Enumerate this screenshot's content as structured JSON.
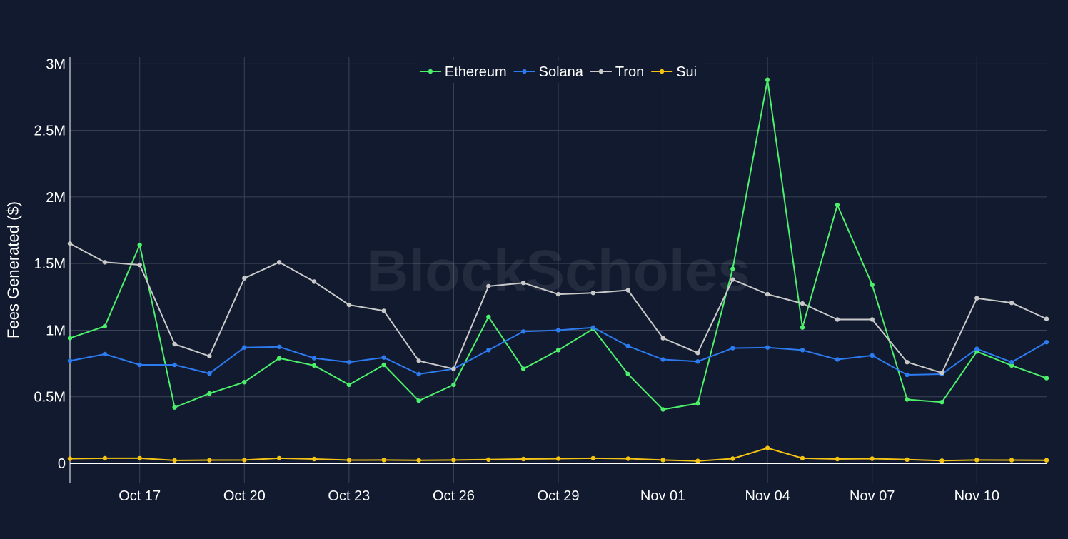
{
  "watermark": "BlockScholes",
  "colors": {
    "background": "#111a2e",
    "grid": "#3a4356",
    "axis": "#ffffff",
    "text": "#ffffff",
    "Ethereum": "#4cf06b",
    "Solana": "#2d7bf0",
    "Tron": "#c9c9c9",
    "Sui": "#f5c314"
  },
  "chart_data": {
    "type": "line",
    "title": "",
    "xlabel": "",
    "ylabel": "Fees Generated ($)",
    "grid": true,
    "legend_position": "top-center",
    "ylim": [
      -150000,
      3050000
    ],
    "xlim": [
      "2024-10-15",
      "2024-11-12"
    ],
    "yticks": [
      0,
      500000,
      1000000,
      1500000,
      2000000,
      2500000,
      3000000
    ],
    "ytick_labels": [
      "0",
      "0.5M",
      "1M",
      "1.5M",
      "2M",
      "2.5M",
      "3M"
    ],
    "xticks": [
      "2024-10-17",
      "2024-10-20",
      "2024-10-23",
      "2024-10-26",
      "2024-10-29",
      "2024-11-01",
      "2024-11-04",
      "2024-11-07",
      "2024-11-10"
    ],
    "xtick_labels": [
      "Oct 17",
      "Oct 20",
      "Oct 23",
      "Oct 26",
      "Oct 29",
      "Nov 01",
      "Nov 04",
      "Nov 07",
      "Nov 10"
    ],
    "x": [
      "2024-10-15",
      "2024-10-16",
      "2024-10-17",
      "2024-10-18",
      "2024-10-19",
      "2024-10-20",
      "2024-10-21",
      "2024-10-22",
      "2024-10-23",
      "2024-10-24",
      "2024-10-25",
      "2024-10-26",
      "2024-10-27",
      "2024-10-28",
      "2024-10-29",
      "2024-10-30",
      "2024-10-31",
      "2024-11-01",
      "2024-11-02",
      "2024-11-03",
      "2024-11-04",
      "2024-11-05",
      "2024-11-06",
      "2024-11-07",
      "2024-11-08",
      "2024-11-09",
      "2024-11-10",
      "2024-11-11",
      "2024-11-12"
    ],
    "series": [
      {
        "name": "Ethereum",
        "values": [
          940000,
          1030000,
          1640000,
          420000,
          525000,
          610000,
          790000,
          735000,
          590000,
          740000,
          470000,
          590000,
          1100000,
          710000,
          850000,
          1010000,
          670000,
          405000,
          450000,
          1460000,
          2880000,
          1020000,
          1940000,
          1340000,
          480000,
          460000,
          840000,
          735000,
          640000
        ]
      },
      {
        "name": "Solana",
        "values": [
          770000,
          820000,
          740000,
          740000,
          675000,
          870000,
          875000,
          790000,
          760000,
          795000,
          670000,
          710000,
          850000,
          990000,
          1000000,
          1020000,
          880000,
          780000,
          765000,
          865000,
          870000,
          850000,
          780000,
          810000,
          665000,
          670000,
          860000,
          760000,
          910000
        ]
      },
      {
        "name": "Tron",
        "values": [
          1650000,
          1510000,
          1490000,
          895000,
          805000,
          1390000,
          1510000,
          1365000,
          1190000,
          1145000,
          770000,
          710000,
          1330000,
          1355000,
          1270000,
          1280000,
          1300000,
          940000,
          830000,
          1380000,
          1270000,
          1200000,
          1080000,
          1080000,
          760000,
          680000,
          1240000,
          1205000,
          1085000
        ]
      },
      {
        "name": "Sui",
        "values": [
          35000,
          38000,
          38000,
          22000,
          24000,
          25000,
          38000,
          32000,
          24000,
          25000,
          23000,
          25000,
          28000,
          32000,
          35000,
          38000,
          35000,
          25000,
          18000,
          35000,
          115000,
          38000,
          32000,
          35000,
          28000,
          20000,
          25000,
          24000,
          23000
        ]
      }
    ]
  }
}
